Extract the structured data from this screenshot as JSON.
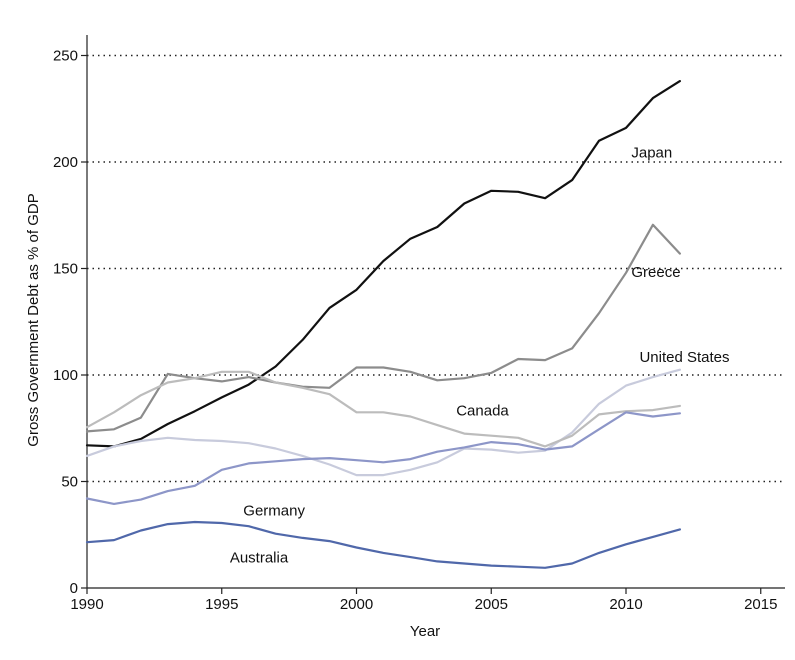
{
  "chart_data": {
    "type": "line",
    "title": "",
    "xlabel": "Year",
    "ylabel": "Gross Government Debt as % of GDP",
    "xlim": [
      1990,
      2016
    ],
    "ylim": [
      0,
      262
    ],
    "x_ticks": [
      1990,
      1995,
      2000,
      2005,
      2010,
      2015
    ],
    "y_ticks": [
      0,
      50,
      100,
      150,
      200,
      250
    ],
    "grid": "horizontal dotted",
    "x": [
      1990,
      1991,
      1992,
      1993,
      1994,
      1995,
      1996,
      1997,
      1998,
      1999,
      2000,
      2001,
      2002,
      2003,
      2004,
      2005,
      2006,
      2007,
      2008,
      2009,
      2010,
      2011,
      2012
    ],
    "series": [
      {
        "name": "Japan",
        "color": "#111111",
        "values": [
          67,
          66.5,
          70,
          77,
          83,
          89.5,
          95.5,
          104,
          116.5,
          131.5,
          140,
          153.5,
          164,
          169.5,
          180.5,
          186.5,
          186,
          183,
          191.5,
          210,
          216,
          230,
          238
        ]
      },
      {
        "name": "Greece",
        "color": "#8c8c8c",
        "values": [
          73.5,
          74.5,
          80,
          100.5,
          98.5,
          97,
          99,
          96.5,
          94.5,
          94,
          103.5,
          103.5,
          101.5,
          97.5,
          98.5,
          101,
          107.5,
          107,
          112.5,
          129,
          148,
          170.5,
          157
        ]
      },
      {
        "name": "United States",
        "color": "#c8cbdc",
        "values": [
          62,
          66.5,
          69,
          70.5,
          69.5,
          69,
          68,
          65.5,
          62,
          58,
          53,
          53,
          55.5,
          59,
          65.5,
          65,
          63.5,
          64.5,
          73,
          86.5,
          95,
          99,
          102.5
        ]
      },
      {
        "name": "Canada",
        "color": "#bcbcbc",
        "values": [
          75.5,
          82.5,
          90.5,
          96.5,
          98.5,
          101.5,
          101.5,
          96.5,
          94,
          91,
          82.5,
          82.5,
          80.5,
          76.5,
          72.5,
          71.5,
          70.5,
          66.5,
          71.5,
          81.5,
          83,
          83.5,
          85.5
        ]
      },
      {
        "name": "Germany",
        "color": "#8d96c8",
        "values": [
          42,
          39.5,
          41.5,
          45.5,
          48,
          55.5,
          58.5,
          59.5,
          60.5,
          61,
          60,
          59,
          60.5,
          64,
          66,
          68.5,
          67.5,
          65,
          66.5,
          74.5,
          82.5,
          80.5,
          82
        ]
      },
      {
        "name": "Australia",
        "color": "#5068aa",
        "values": [
          21.5,
          22.5,
          27,
          30,
          31,
          30.5,
          29,
          25.5,
          23.5,
          22,
          19,
          16.5,
          14.5,
          12.5,
          11.5,
          10.5,
          10,
          9.5,
          11.5,
          16.5,
          20.5,
          24,
          27.5
        ]
      }
    ],
    "annotations": [
      {
        "text": "Japan",
        "x": 2010.2,
        "y": 202
      },
      {
        "text": "Greece",
        "x": 2010.2,
        "y": 146
      },
      {
        "text": "United States",
        "x": 2010.5,
        "y": 106
      },
      {
        "text": "Canada",
        "x": 2003.7,
        "y": 81
      },
      {
        "text": "Germany",
        "x": 1995.8,
        "y": 34
      },
      {
        "text": "Australia",
        "x": 1995.3,
        "y": 12
      }
    ]
  }
}
